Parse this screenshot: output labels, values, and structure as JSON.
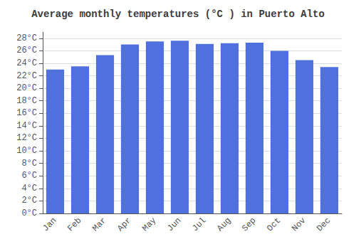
{
  "chart_data": {
    "type": "bar",
    "title": "Average monthly temperatures (°C ) in Puerto Alto",
    "categories": [
      "Jan",
      "Feb",
      "Mar",
      "Apr",
      "May",
      "Jun",
      "Jul",
      "Aug",
      "Sep",
      "Oct",
      "Nov",
      "Dec"
    ],
    "values": [
      23.0,
      23.5,
      25.3,
      27.0,
      27.5,
      27.6,
      27.1,
      27.2,
      27.3,
      26.0,
      24.5,
      23.4
    ],
    "ylim": [
      0,
      29
    ],
    "yticks": [
      {
        "value": 0,
        "label": "0°C"
      },
      {
        "value": 2,
        "label": "2°C"
      },
      {
        "value": 4,
        "label": "4°C"
      },
      {
        "value": 6,
        "label": "6°C"
      },
      {
        "value": 8,
        "label": "8°C"
      },
      {
        "value": 10,
        "label": "10°C"
      },
      {
        "value": 12,
        "label": "12°C"
      },
      {
        "value": 14,
        "label": "14°C"
      },
      {
        "value": 16,
        "label": "16°C"
      },
      {
        "value": 18,
        "label": "18°C"
      },
      {
        "value": 20,
        "label": "20°C"
      },
      {
        "value": 22,
        "label": "22°C"
      },
      {
        "value": 24,
        "label": "24°C"
      },
      {
        "value": 26,
        "label": "26°C"
      },
      {
        "value": 28,
        "label": "28°C"
      }
    ],
    "grid": true
  }
}
